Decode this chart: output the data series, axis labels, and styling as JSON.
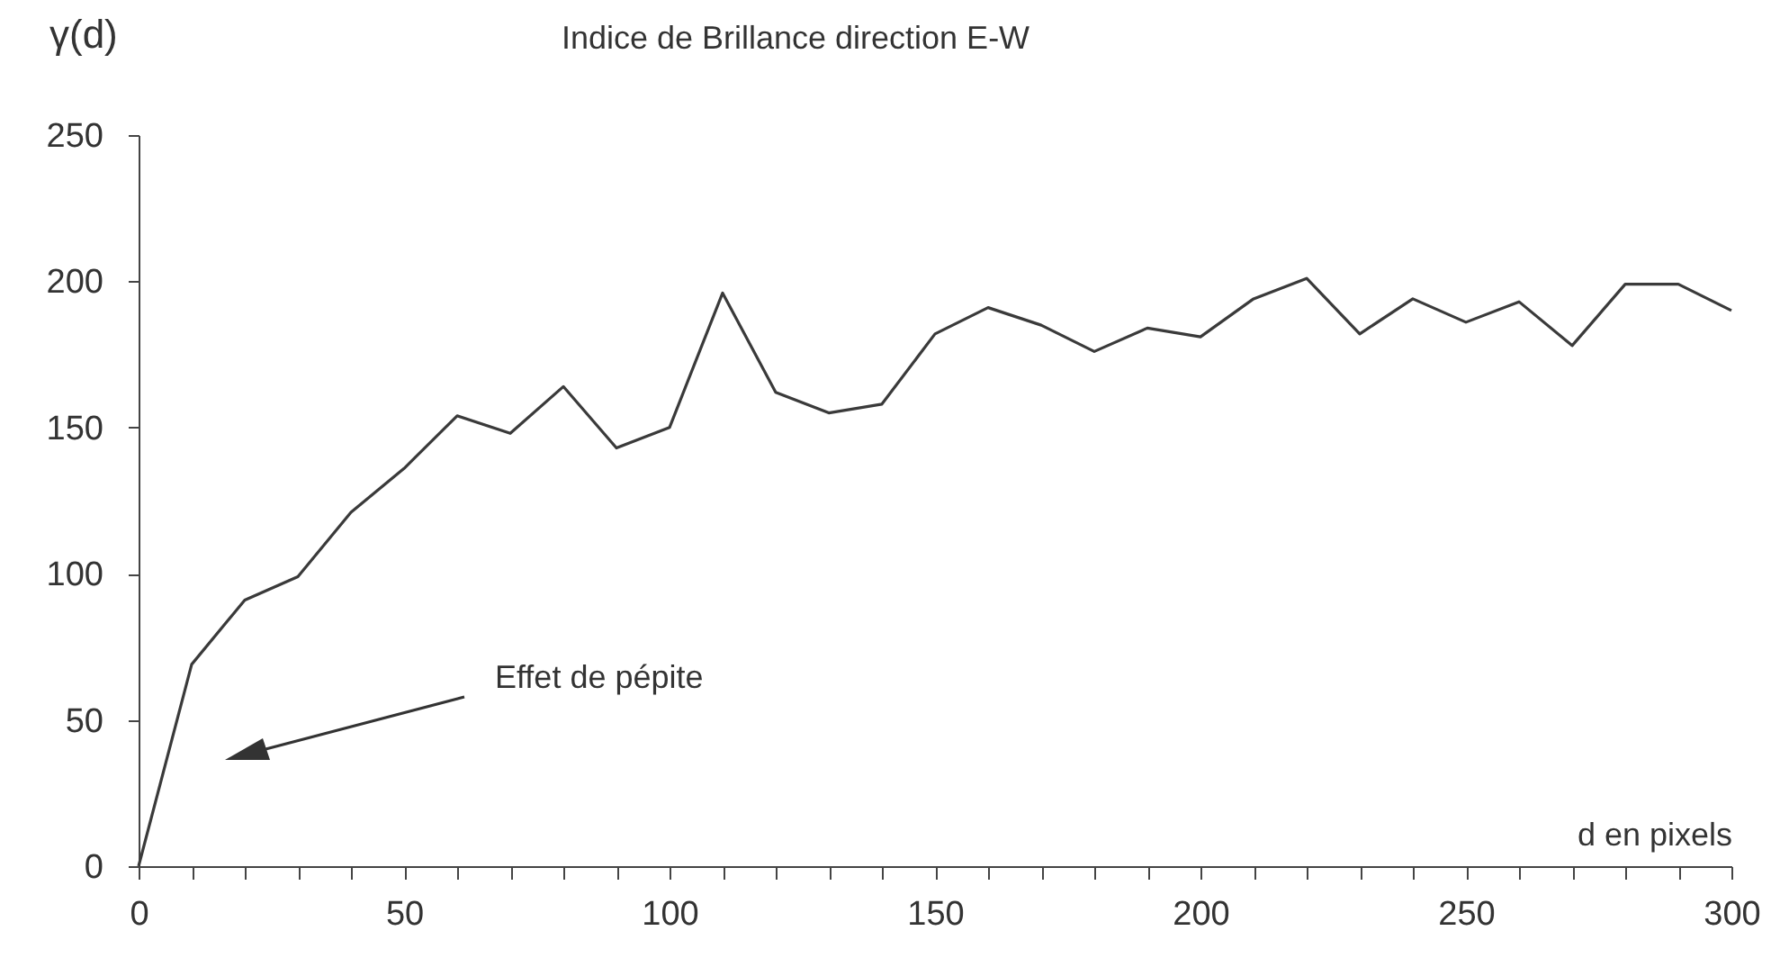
{
  "chart_data": {
    "type": "line",
    "title": "Indice de Brillance direction E-W",
    "xlabel": "d en pixels",
    "ylabel": "γ(d)",
    "x": [
      0,
      10,
      20,
      30,
      40,
      50,
      60,
      70,
      80,
      90,
      100,
      110,
      120,
      130,
      140,
      150,
      160,
      170,
      180,
      190,
      200,
      210,
      220,
      230,
      240,
      250,
      260,
      270,
      280,
      290,
      300
    ],
    "series": [
      {
        "color": "#3a3a3a",
        "values": [
          0,
          69,
          91,
          99,
          121,
          136,
          154,
          148,
          164,
          143,
          150,
          196,
          162,
          155,
          158,
          182,
          191,
          185,
          176,
          184,
          181,
          194,
          201,
          182,
          194,
          186,
          193,
          178,
          199,
          199,
          190
        ]
      }
    ],
    "xlim": [
      0,
      300
    ],
    "ylim": [
      0,
      250
    ],
    "xticks": [
      0,
      {
        "value": 10,
        "label": null
      },
      {
        "value": 20,
        "label": null
      },
      {
        "value": 30,
        "label": null
      },
      {
        "value": 40,
        "label": null
      },
      50,
      {
        "value": 60,
        "label": null
      },
      {
        "value": 70,
        "label": null
      },
      {
        "value": 80,
        "label": null
      },
      {
        "value": 90,
        "label": null
      },
      100,
      {
        "value": 110,
        "label": null
      },
      {
        "value": 120,
        "label": null
      },
      {
        "value": 130,
        "label": null
      },
      {
        "value": 140,
        "label": null
      },
      150,
      {
        "value": 160,
        "label": null
      },
      {
        "value": 170,
        "label": null
      },
      {
        "value": 180,
        "label": null
      },
      {
        "value": 190,
        "label": null
      },
      200,
      {
        "value": 210,
        "label": null
      },
      {
        "value": 220,
        "label": null
      },
      {
        "value": 230,
        "label": null
      },
      {
        "value": 240,
        "label": null
      },
      250,
      {
        "value": 260,
        "label": null
      },
      {
        "value": 270,
        "label": null
      },
      {
        "value": 280,
        "label": null
      },
      {
        "value": 290,
        "label": null
      },
      300
    ],
    "yticks": [
      0,
      50,
      100,
      150,
      200,
      250
    ],
    "grid": false,
    "marker": "none",
    "line_style": "solid",
    "annotations": [
      "Effet de pépite"
    ]
  }
}
